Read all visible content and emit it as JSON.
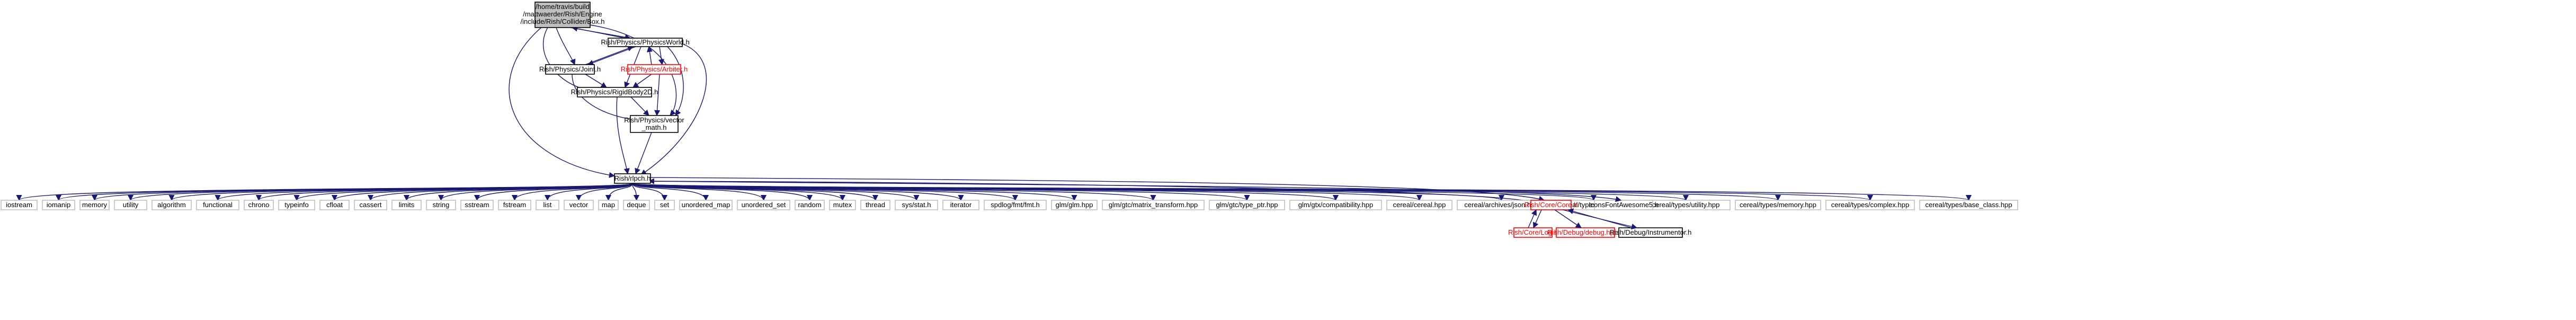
{
  "graph": {
    "root": {
      "lines": [
        "/home/travis/build",
        "/mattwaerder/Rish/Engine",
        "/include/Rish/Collider/Box.h"
      ]
    },
    "nodes": {
      "physics_world": "Rish/Physics/PhysicsWorld.h",
      "joint": "Rish/Physics/Joint.h",
      "arbiter": "Rish/Physics/Arbiter.h",
      "rigidbody": "Rish/Physics/RigidBody2D.h",
      "vector_math": [
        "Rish/Physics/vector",
        "_math.h"
      ],
      "rlpch": "Rish/rlpch.h"
    },
    "leaves": [
      "iostream",
      "iomanip",
      "memory",
      "utility",
      "algorithm",
      "functional",
      "chrono",
      "typeinfo",
      "cfloat",
      "cassert",
      "limits",
      "string",
      "sstream",
      "fstream",
      "list",
      "vector",
      "map",
      "deque",
      "set",
      "unordered_map",
      "unordered_set",
      "random",
      "mutex",
      "thread",
      "sys/stat.h",
      "iterator",
      "spdlog/fmt/fmt.h",
      "glm/glm.hpp",
      "glm/gtc/matrix_transform.hpp",
      "glm/gtc/type_ptr.hpp",
      "glm/gtx/compatibility.hpp",
      "cereal/cereal.hpp",
      "cereal/archives/json.hpp",
      "cereal/types/string.hpp",
      "cereal/types/utility.hpp",
      "cereal/types/memory.hpp",
      "cereal/types/complex.hpp",
      "cereal/types/base_class.hpp"
    ],
    "core": {
      "core": "Rish/Core/Core.h",
      "log": "Rish/Core/Log.h",
      "debugbreak": "Rish/Debug/debug.hpp.h",
      "instrumentor": "Rish/Debug/Instrumentor.h",
      "icons": "IconsFontAwesome5.h"
    },
    "colors": {
      "edge": "#191970",
      "root_fill": "#bfbfbf",
      "missing_border": "#ff0000",
      "leaf_border": "#bfbfbf"
    }
  }
}
